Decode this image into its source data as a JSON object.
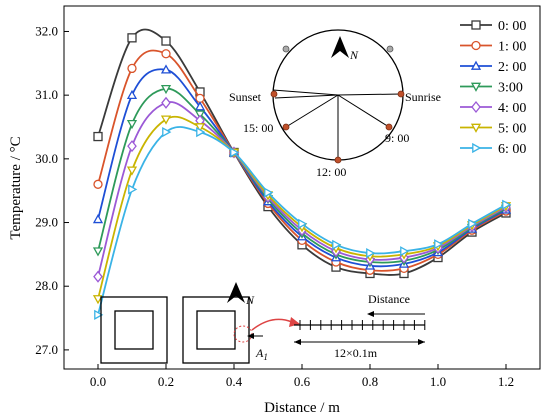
{
  "chart_data": {
    "type": "line",
    "xlabel": "Distance / m",
    "ylabel": "Temperature / °C",
    "xlim": [
      -0.1,
      1.3
    ],
    "ylim": [
      26.7,
      32.4
    ],
    "xticks": [
      "0.0",
      "0.2",
      "0.4",
      "0.6",
      "0.8",
      "1.0",
      "1.2"
    ],
    "yticks": [
      "27.0",
      "28.0",
      "29.0",
      "30.0",
      "31.0",
      "32.0"
    ],
    "legend_position": "top-right",
    "x": [
      0.0,
      0.1,
      0.2,
      0.3,
      0.4,
      0.5,
      0.6,
      0.7,
      0.8,
      0.9,
      1.0,
      1.1,
      1.2
    ],
    "series": [
      {
        "name": "0: 00",
        "color": "#3a3a3a",
        "marker": "square",
        "values": [
          30.35,
          31.9,
          31.85,
          31.05,
          30.1,
          29.25,
          28.65,
          28.3,
          28.2,
          28.2,
          28.45,
          28.85,
          29.15
        ]
      },
      {
        "name": "1: 00",
        "color": "#d9542b",
        "marker": "circle",
        "values": [
          29.6,
          31.42,
          31.65,
          30.95,
          30.1,
          29.3,
          28.72,
          28.38,
          28.25,
          28.28,
          28.5,
          28.88,
          29.18
        ]
      },
      {
        "name": "2: 00",
        "color": "#1e4fd6",
        "marker": "triangle-up",
        "values": [
          29.05,
          31.0,
          31.4,
          30.82,
          30.1,
          29.33,
          28.78,
          28.45,
          28.32,
          28.35,
          28.53,
          28.9,
          29.2
        ]
      },
      {
        "name": "3:00",
        "color": "#2e9a5a",
        "marker": "triangle-down",
        "values": [
          28.55,
          30.55,
          31.1,
          30.7,
          30.1,
          29.37,
          28.83,
          28.5,
          28.38,
          28.4,
          28.57,
          28.92,
          29.22
        ]
      },
      {
        "name": "4: 00",
        "color": "#9b59d6",
        "marker": "diamond",
        "values": [
          28.15,
          30.2,
          30.88,
          30.6,
          30.1,
          29.4,
          28.88,
          28.55,
          28.42,
          28.45,
          28.6,
          28.94,
          29.24
        ]
      },
      {
        "name": "5: 00",
        "color": "#c9b400",
        "marker": "triangle-down",
        "values": [
          27.8,
          29.82,
          30.62,
          30.5,
          30.1,
          29.43,
          28.93,
          28.6,
          28.47,
          28.5,
          28.63,
          28.96,
          29.26
        ]
      },
      {
        "name": "6: 00",
        "color": "#3ab3e6",
        "marker": "triangle-right",
        "values": [
          27.55,
          29.52,
          30.42,
          30.42,
          30.1,
          29.47,
          28.98,
          28.65,
          28.52,
          28.55,
          28.66,
          28.98,
          29.28
        ]
      }
    ]
  },
  "compass_inset": {
    "north_label": "N",
    "labels": {
      "sunset": "Sunset",
      "sunrise": "Sunrise",
      "t15": "15: 00",
      "t12": "12: 00",
      "t9": "9: 00"
    }
  },
  "layout_inset": {
    "north_label": "N",
    "point_label": "A",
    "point_subscript": "1",
    "distance_label": "Distance",
    "span_label": "12×0.1m"
  }
}
